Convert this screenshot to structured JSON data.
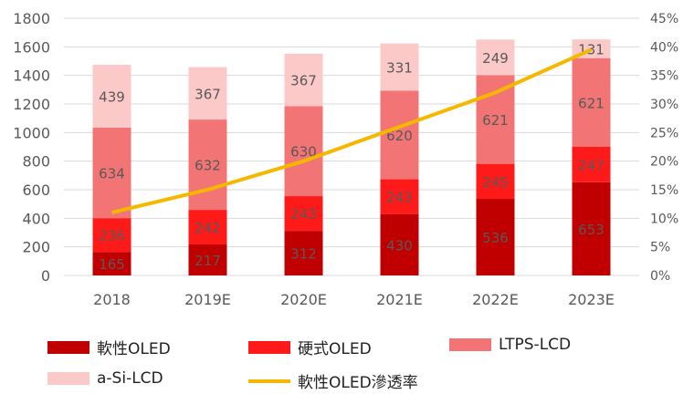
{
  "chart_data": {
    "type": "bar",
    "stacked": true,
    "categories": [
      "2018",
      "2019E",
      "2020E",
      "2021E",
      "2022E",
      "2023E"
    ],
    "series": [
      {
        "name": "軟性OLED",
        "values": [
          165,
          217,
          312,
          430,
          536,
          653
        ],
        "color": "#c00000"
      },
      {
        "name": "硬式OLED",
        "values": [
          236,
          242,
          243,
          243,
          245,
          247
        ],
        "color": "#ff1a1a"
      },
      {
        "name": "LTPS-LCD",
        "values": [
          634,
          632,
          630,
          620,
          621,
          621
        ],
        "color": "#f27474"
      },
      {
        "name": "a-Si-LCD",
        "values": [
          439,
          367,
          367,
          331,
          249,
          131
        ],
        "color": "#fcc9c9"
      }
    ],
    "line": {
      "name": "軟性OLED滲透率",
      "values": [
        11,
        15,
        20,
        26,
        32,
        39.5
      ],
      "color": "#f5b800",
      "axis": "right"
    },
    "ylim": [
      0,
      1800
    ],
    "yticks": [
      "0",
      "200",
      "400",
      "600",
      "800",
      "1000",
      "1200",
      "1400",
      "1600",
      "1800"
    ],
    "y2lim": [
      0,
      45
    ],
    "y2ticks": [
      "0%",
      "5%",
      "10%",
      "15%",
      "20%",
      "25%",
      "30%",
      "35%",
      "40%",
      "45%"
    ],
    "grid": true,
    "legend": "bottom"
  }
}
